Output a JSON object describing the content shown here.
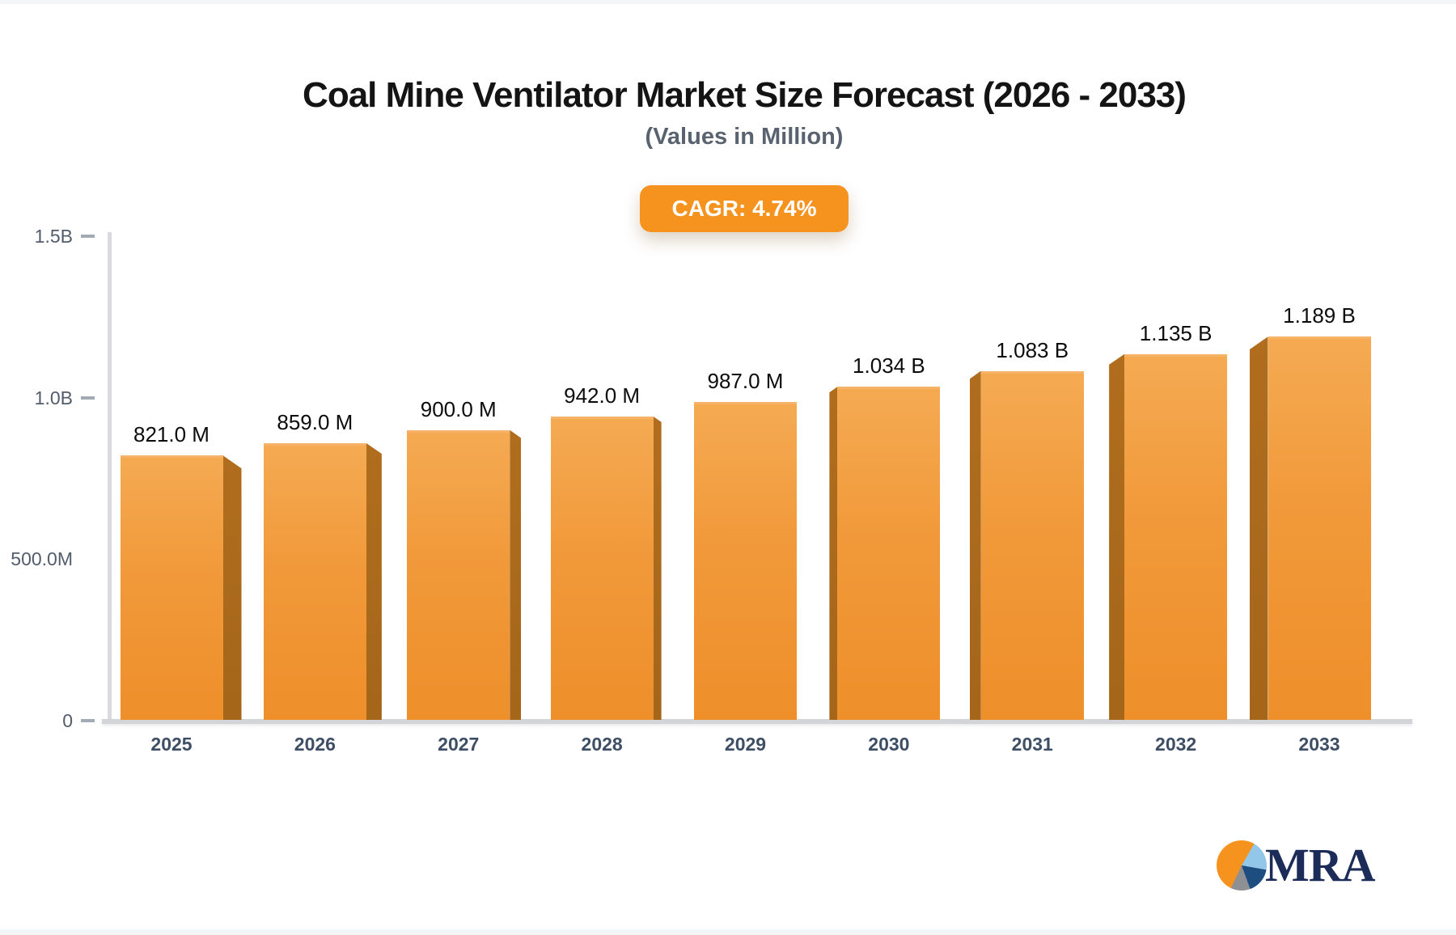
{
  "header": {
    "title": "Coal Mine Ventilator Market Size Forecast (2026 - 2033)",
    "subtitle": "(Values in Million)",
    "cagr_badge": "CAGR: 4.74%"
  },
  "colors": {
    "accent_orange": "#f6931f",
    "bar_gradient_top": "#f5aa52",
    "bar_gradient_mid": "#f1993a",
    "bar_gradient_bottom": "#ee8f2a",
    "bar_side_dark": "#ab6a1c",
    "axis_gray": "#d9dbde",
    "tick_text": "#525c6b",
    "year_text": "#3e4e64",
    "logo_navy": "#1c2c59",
    "logo_lightblue": "#93c7e9",
    "logo_darkblue": "#1d4e7f",
    "logo_gray": "#8e9093"
  },
  "chart_data": {
    "type": "bar",
    "title": "Coal Mine Ventilator Market Size Forecast (2026 - 2033)",
    "subtitle": "(Values in Million)",
    "annotation": "CAGR: 4.74%",
    "categories": [
      "2025",
      "2026",
      "2027",
      "2028",
      "2029",
      "2030",
      "2031",
      "2032",
      "2033"
    ],
    "values_millions": [
      821,
      859,
      900,
      942,
      987,
      1034,
      1083,
      1135,
      1189
    ],
    "bar_labels": [
      "821.0 M",
      "859.0 M",
      "900.0 M",
      "942.0 M",
      "987.0 M",
      "1.034 B",
      "1.083 B",
      "1.135 B",
      "1.189 B"
    ],
    "ylim_millions": [
      0,
      1500
    ],
    "grid": false,
    "legend": "none",
    "y_ticks": [
      {
        "label": "1.5B",
        "value_millions": 1500,
        "dash": true
      },
      {
        "label": "1.0B",
        "value_millions": 1000,
        "dash": true
      },
      {
        "label": "500.0M",
        "value_millions": 500,
        "dash": false
      },
      {
        "label": "0",
        "value_millions": 0,
        "dash": true
      }
    ]
  },
  "logo": {
    "text": "MRA",
    "icon": "pie-chart-icon"
  }
}
